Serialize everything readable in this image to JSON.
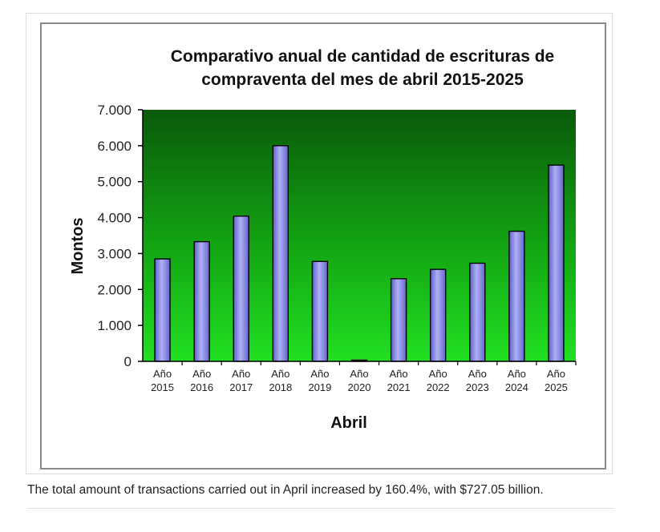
{
  "chart_data": {
    "type": "bar",
    "title_lines": [
      "Comparativo anual de cantidad de escrituras de",
      "compraventa del mes de abril 2015-2025"
    ],
    "xlabel": "Abril",
    "ylabel": "Montos",
    "categories": [
      [
        "Año",
        "2015"
      ],
      [
        "Año",
        "2016"
      ],
      [
        "Año",
        "2017"
      ],
      [
        "Año",
        "2018"
      ],
      [
        "Año",
        "2019"
      ],
      [
        "Año",
        "2020"
      ],
      [
        "Año",
        "2021"
      ],
      [
        "Año",
        "2022"
      ],
      [
        "Año",
        "2023"
      ],
      [
        "Año",
        "2024"
      ],
      [
        "Año",
        "2025"
      ]
    ],
    "values": [
      2850,
      3330,
      4040,
      6000,
      2780,
      20,
      2300,
      2560,
      2730,
      3620,
      5460
    ],
    "ylim": [
      0,
      7000
    ],
    "yticks": [
      {
        "value": 0,
        "label": "0"
      },
      {
        "value": 1000,
        "label": "1.000"
      },
      {
        "value": 2000,
        "label": "2.000"
      },
      {
        "value": 3000,
        "label": "3.000"
      },
      {
        "value": 4000,
        "label": "4.000"
      },
      {
        "value": 5000,
        "label": "5.000"
      },
      {
        "value": 6000,
        "label": "6.000"
      },
      {
        "value": 7000,
        "label": "7.000"
      }
    ],
    "grid": false,
    "legend": "none",
    "colors": {
      "plot_bg_top": "#0a5a0a",
      "plot_bg_bottom": "#22e022",
      "bar_fill": "#8d8fe6",
      "bar_edge": "#000000"
    }
  },
  "caption": "The total amount of transactions carried out in April increased by 160.4%, with $727.05 billion."
}
